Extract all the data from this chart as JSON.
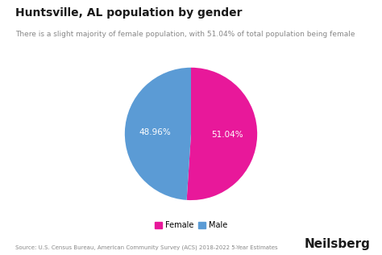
{
  "title": "Huntsville, AL population by gender",
  "subtitle": "There is a slight majority of female population, with 51.04% of total population being female",
  "labels": [
    "Female",
    "Male"
  ],
  "values": [
    51.04,
    48.96
  ],
  "colors": [
    "#e8189a",
    "#5b9bd5"
  ],
  "pct_labels": [
    "51.04%",
    "48.96%"
  ],
  "legend_labels": [
    "Female",
    "Male"
  ],
  "source_text": "Source: U.S. Census Bureau, American Community Survey (ACS) 2018-2022 5-Year Estimates",
  "brand_text": "Neilsberg",
  "background_color": "#ffffff",
  "label_color": "#ffffff",
  "startangle": 90
}
